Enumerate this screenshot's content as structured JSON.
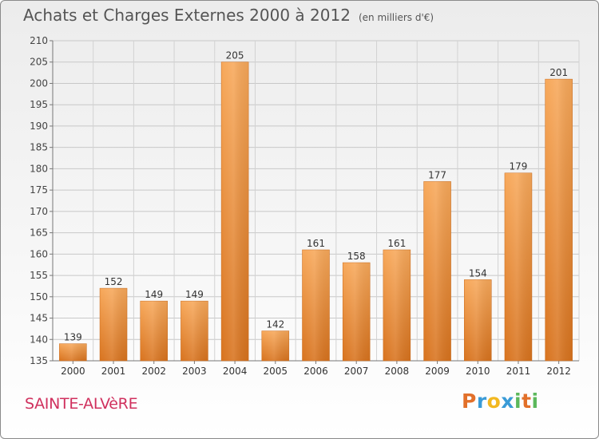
{
  "title": "Achats et Charges Externes 2000 à 2012",
  "unit": "(en milliers d'€)",
  "town": "SAINTE-ALVèRE",
  "logo": {
    "letters": [
      "P",
      "r",
      "o",
      "x",
      "i",
      "t",
      "i"
    ],
    "colors": [
      "#e2702a",
      "#3a9bd7",
      "#f2b820",
      "#3a9bd7",
      "#5cb85c",
      "#e2702a",
      "#5cb85c"
    ]
  },
  "chart_data": {
    "type": "bar",
    "title": "Achats et Charges Externes 2000 à 2012",
    "subtitle": "(en milliers d'€)",
    "categories": [
      "2000",
      "2001",
      "2002",
      "2003",
      "2004",
      "2005",
      "2006",
      "2007",
      "2008",
      "2009",
      "2010",
      "2011",
      "2012"
    ],
    "values": [
      139,
      152,
      149,
      149,
      205,
      142,
      161,
      158,
      161,
      177,
      154,
      179,
      201
    ],
    "ylim": [
      135,
      210
    ],
    "yticks": [
      135,
      140,
      145,
      150,
      155,
      160,
      165,
      170,
      175,
      180,
      185,
      190,
      195,
      200,
      205,
      210
    ],
    "grid": true,
    "bar_color": "#f0a050"
  }
}
